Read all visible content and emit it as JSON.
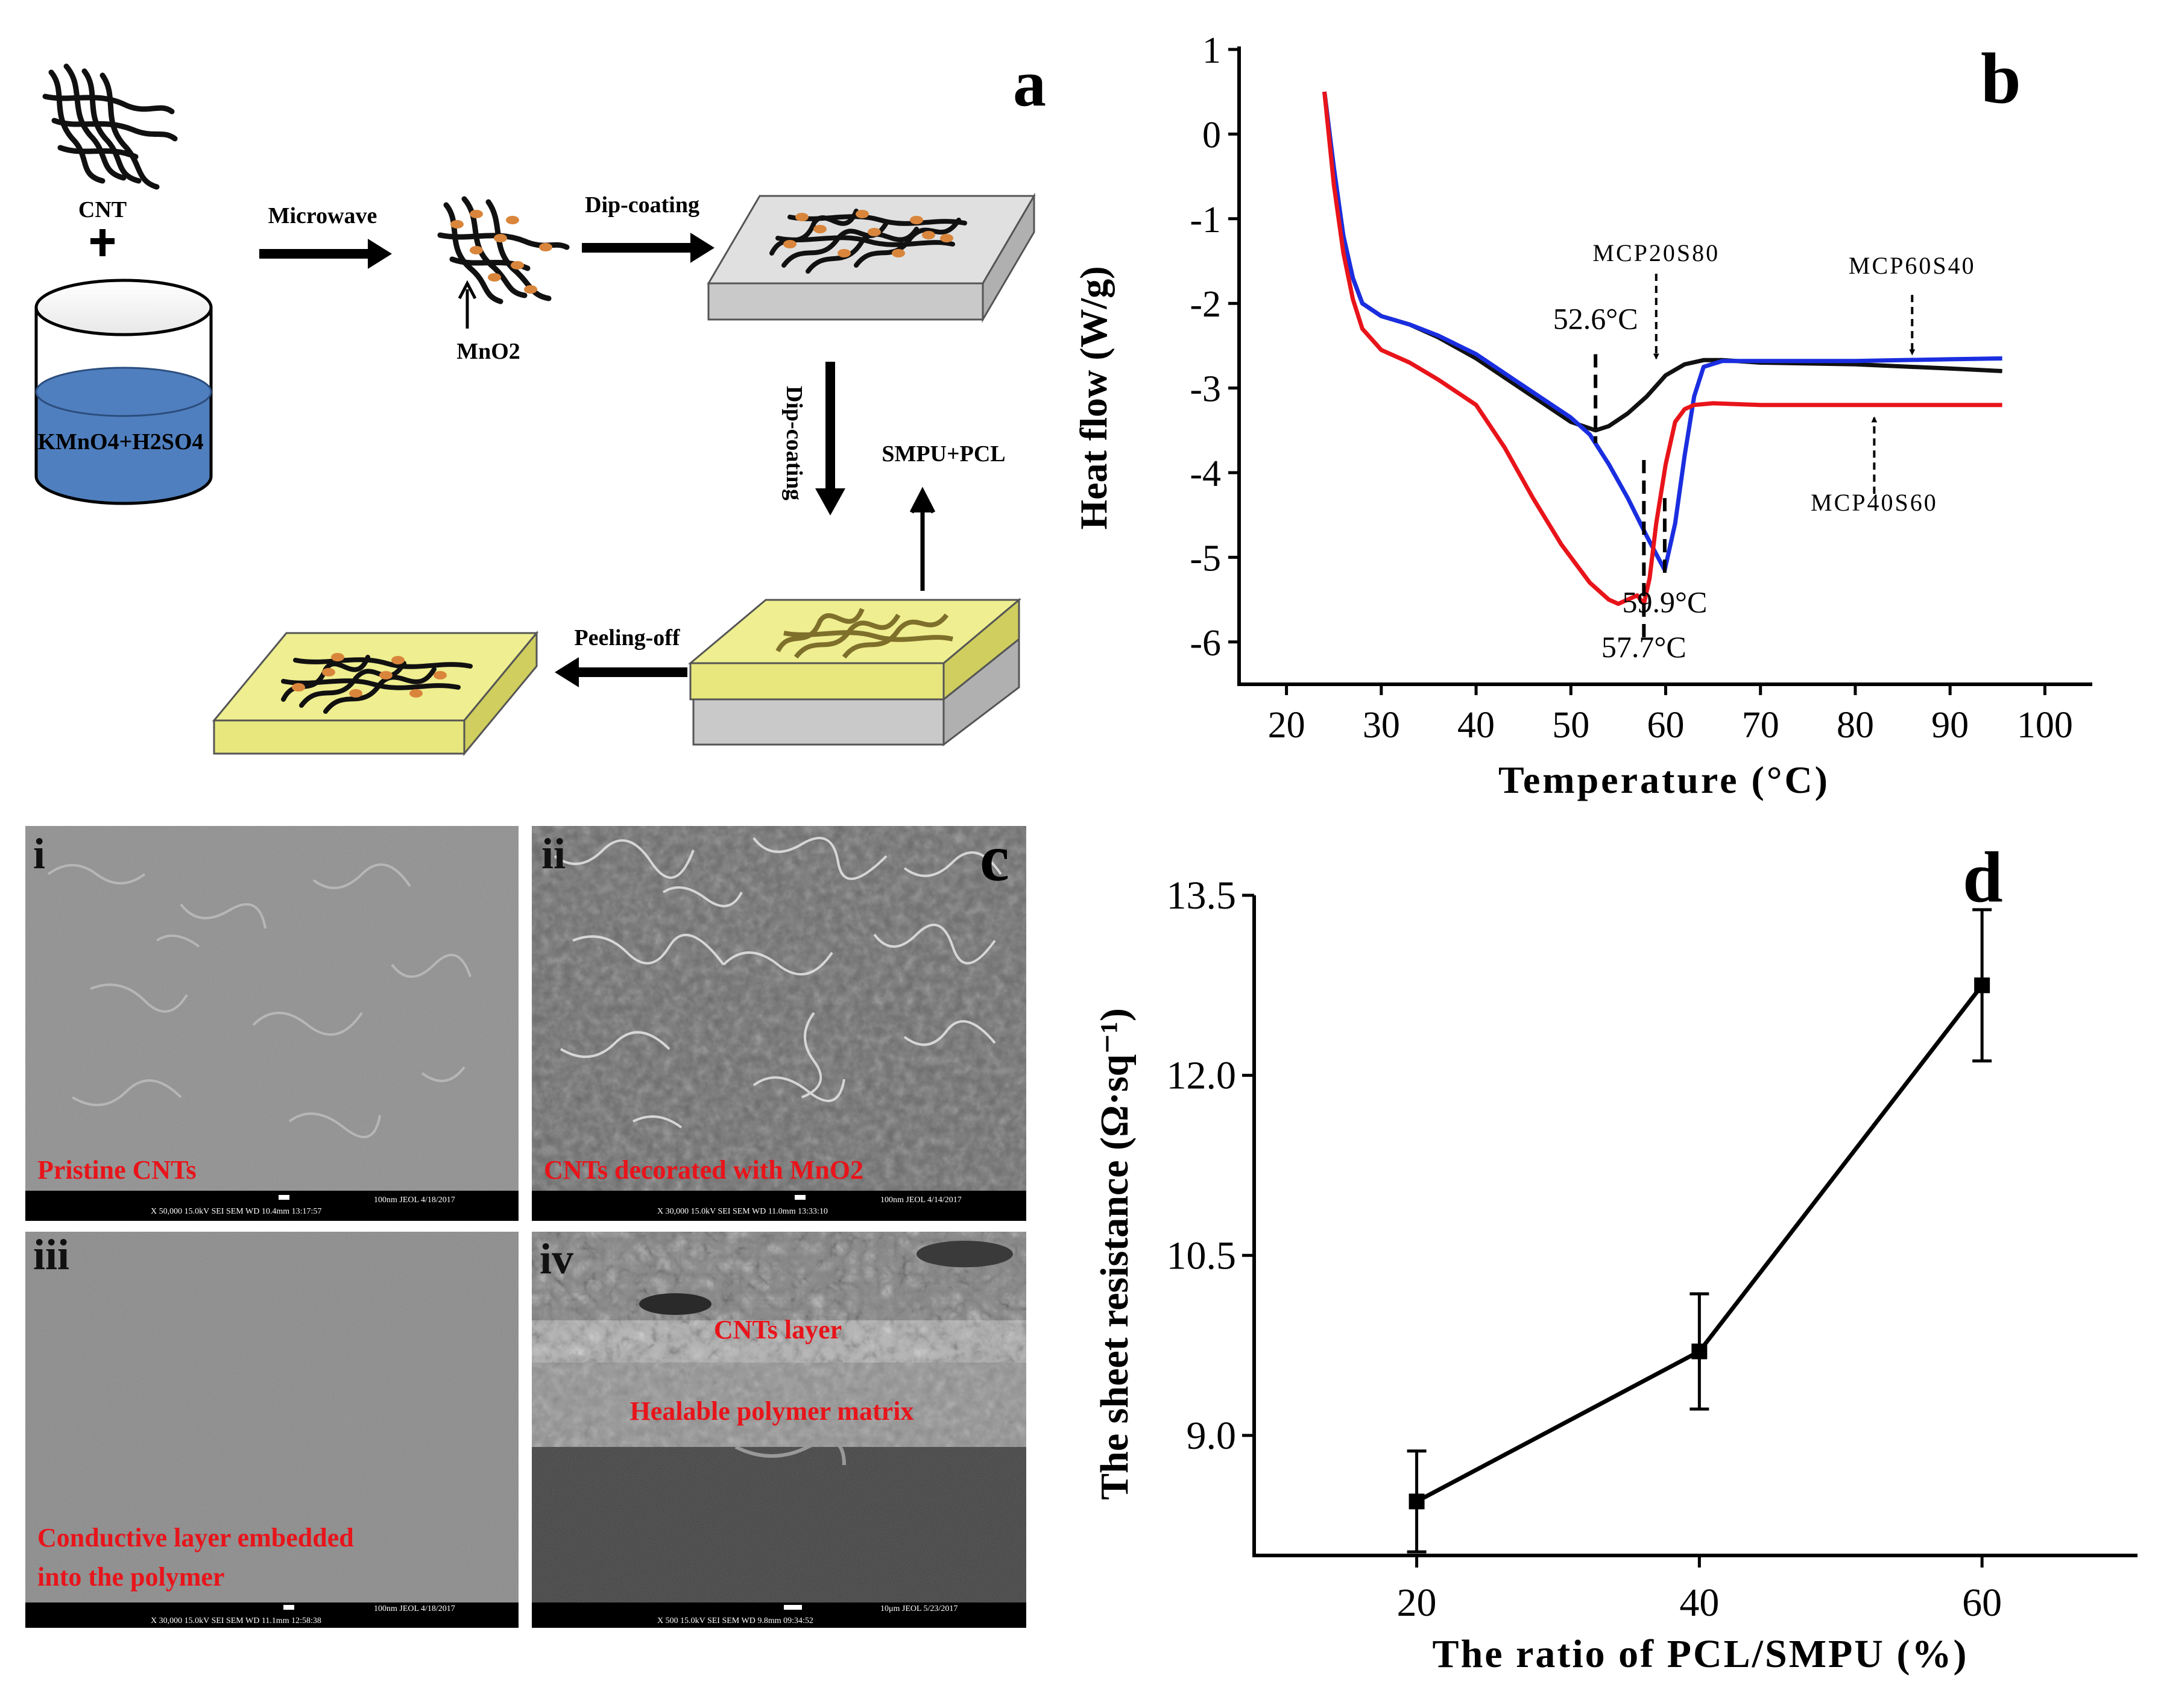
{
  "panel_a": {
    "letter": "a",
    "cnt_label": "CNT",
    "beaker_label": "KMnO4+H2SO4",
    "microwave": "Microwave",
    "mno2": "MnO2",
    "dip1": "Dip-coating",
    "dip2": "Dip-coating",
    "smpu_pcl": "SMPU+PCL",
    "peel": "Peeling-off"
  },
  "panel_c": {
    "letter": "c",
    "images": [
      {
        "numeral": "i",
        "caption": [
          "Pristine CNTs"
        ],
        "scalebar": "X 50,000   15.0kV SEI   SEM   WD 10.4mm 13:17:57",
        "scale": "100nm JEOL  4/18/2017"
      },
      {
        "numeral": "ii",
        "caption": [
          "CNTs decorated with MnO2"
        ],
        "scalebar": "X 30,000   15.0kV SEI   SEM   WD 11.0mm 13:33:10",
        "scale": "100nm JEOL  4/14/2017"
      },
      {
        "numeral": "iii",
        "caption": [
          "Conductive layer embedded",
          "into the polymer"
        ],
        "scalebar": "X 30,000   15.0kV SEI   SEM   WD 11.1mm 12:58:38",
        "scale": "100nm JEOL  4/18/2017"
      },
      {
        "numeral": "iv",
        "caption": [
          "CNTs layer",
          "Healable polymer matrix"
        ],
        "scalebar": "X 500   15.0kV SEI   SEM   WD 9.8mm 09:34:52",
        "scale": "10μm JEOL  5/23/2017"
      }
    ]
  },
  "chart_data": [
    {
      "panel": "b",
      "type": "line",
      "title": "b",
      "xlabel": "Temperature (°C)",
      "ylabel": "Heat flow (W/g)",
      "xlim": [
        15,
        105
      ],
      "ylim": [
        -6.5,
        1
      ],
      "xticks": [
        20,
        30,
        40,
        50,
        60,
        70,
        80,
        90,
        100
      ],
      "yticks": [
        1,
        0,
        -1,
        -2,
        -3,
        -4,
        -5,
        -6
      ],
      "series": [
        {
          "name": "MCP20S80",
          "color": "#111111",
          "x": [
            24,
            25,
            26,
            27,
            28,
            30,
            33,
            36,
            40,
            44,
            48,
            50,
            52.6,
            54,
            56,
            58,
            60,
            62,
            64,
            66,
            70,
            80,
            90,
            95.5
          ],
          "y": [
            0.5,
            -0.4,
            -1.2,
            -1.7,
            -2.0,
            -2.15,
            -2.25,
            -2.4,
            -2.65,
            -2.95,
            -3.25,
            -3.4,
            -3.5,
            -3.45,
            -3.3,
            -3.1,
            -2.85,
            -2.72,
            -2.67,
            -2.67,
            -2.7,
            -2.72,
            -2.77,
            -2.8
          ]
        },
        {
          "name": "MCP60S40",
          "color": "#1a2ee0",
          "x": [
            24,
            25,
            26,
            27,
            28,
            30,
            33,
            36,
            40,
            44,
            48,
            50,
            52,
            54,
            56,
            58,
            59.9,
            61,
            62,
            63,
            64,
            66,
            70,
            80,
            90,
            95.5
          ],
          "y": [
            0.5,
            -0.4,
            -1.2,
            -1.7,
            -2.0,
            -2.15,
            -2.25,
            -2.38,
            -2.6,
            -2.9,
            -3.2,
            -3.35,
            -3.55,
            -3.9,
            -4.3,
            -4.75,
            -5.15,
            -4.6,
            -3.8,
            -3.1,
            -2.75,
            -2.68,
            -2.68,
            -2.68,
            -2.66,
            -2.65
          ]
        },
        {
          "name": "MCP40S60",
          "color": "#e8141a",
          "x": [
            24,
            25,
            26,
            27,
            28,
            30,
            33,
            36,
            40,
            43,
            46,
            49,
            52,
            54,
            55,
            56,
            57,
            57.7,
            58.3,
            59,
            60,
            61,
            62,
            63,
            65,
            70,
            80,
            90,
            95.5
          ],
          "y": [
            0.5,
            -0.6,
            -1.4,
            -1.95,
            -2.3,
            -2.55,
            -2.7,
            -2.9,
            -3.2,
            -3.7,
            -4.3,
            -4.85,
            -5.3,
            -5.5,
            -5.55,
            -5.5,
            -5.45,
            -5.55,
            -5.25,
            -4.6,
            -3.9,
            -3.4,
            -3.25,
            -3.2,
            -3.18,
            -3.2,
            -3.2,
            -3.2,
            -3.2
          ]
        }
      ],
      "annotations": [
        {
          "text": "MCP20S80",
          "x": 59,
          "y": -1.5
        },
        {
          "text": "MCP60S40",
          "x": 86,
          "y": -1.65
        },
        {
          "text": "MCP40S60",
          "x": 82,
          "y": -4.45
        },
        {
          "text": "52.6°C",
          "x": 52.6,
          "y": -2.3
        },
        {
          "text": "59.9°C",
          "x": 59.9,
          "y": -5.65
        },
        {
          "text": "57.7°C",
          "x": 57.7,
          "y": -6.18
        }
      ]
    },
    {
      "panel": "d",
      "type": "line",
      "title": "d",
      "xlabel": "The ratio of PCL/SMPU (%)",
      "ylabel": "The sheet resistance (Ω·sq⁻¹)",
      "xlim": [
        8.5,
        71
      ],
      "ylim": [
        8,
        13.5
      ],
      "xticks": [
        20,
        40,
        60
      ],
      "yticks": [
        9.0,
        10.5,
        12.0,
        13.5
      ],
      "x": [
        20,
        40,
        60
      ],
      "y": [
        8.45,
        9.7,
        12.75
      ],
      "yerr": [
        0.42,
        0.48,
        0.63
      ],
      "color": "#000000"
    }
  ]
}
